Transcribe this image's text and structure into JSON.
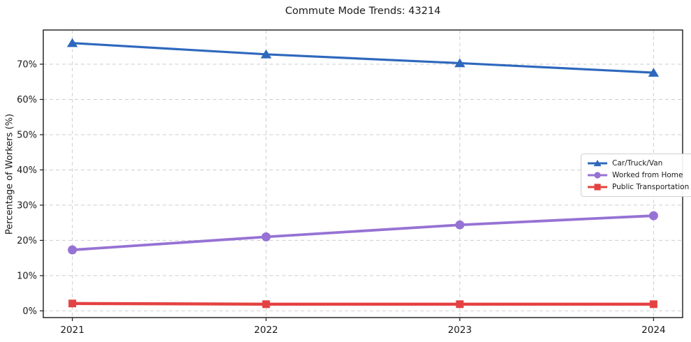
{
  "chart_data": {
    "type": "line",
    "title": "Commute Mode Trends: 43214",
    "xlabel": "",
    "ylabel": "Percentage of Workers (%)",
    "categories": [
      2021,
      2022,
      2023,
      2024
    ],
    "x_tick_labels": [
      "2021",
      "2022",
      "2023",
      "2024"
    ],
    "series": [
      {
        "name": "Car/Truck/Van",
        "values": [
          76.0,
          72.8,
          70.3,
          67.6
        ],
        "color": "#2e68bd",
        "marker": "triangle"
      },
      {
        "name": "Worked from Home",
        "values": [
          17.3,
          21.0,
          24.4,
          27.0
        ],
        "color": "#9672d4",
        "marker": "circle"
      },
      {
        "name": "Public Transportation",
        "values": [
          2.1,
          1.9,
          1.9,
          1.9
        ],
        "color": "#e44242",
        "marker": "square"
      }
    ],
    "y_tick_labels": [
      "0%",
      "10%",
      "20%",
      "30%",
      "40%",
      "50%",
      "60%",
      "70%"
    ],
    "y_tick_values": [
      0,
      10,
      20,
      30,
      40,
      50,
      60,
      70
    ],
    "xlim": [
      2020.85,
      2024.15
    ],
    "ylim": [
      -1.9,
      79.7
    ],
    "grid": "dashed-both",
    "grid_color": "#cdcdcd",
    "spine_color": "#1a1a1a",
    "legend_position": "center-right"
  }
}
